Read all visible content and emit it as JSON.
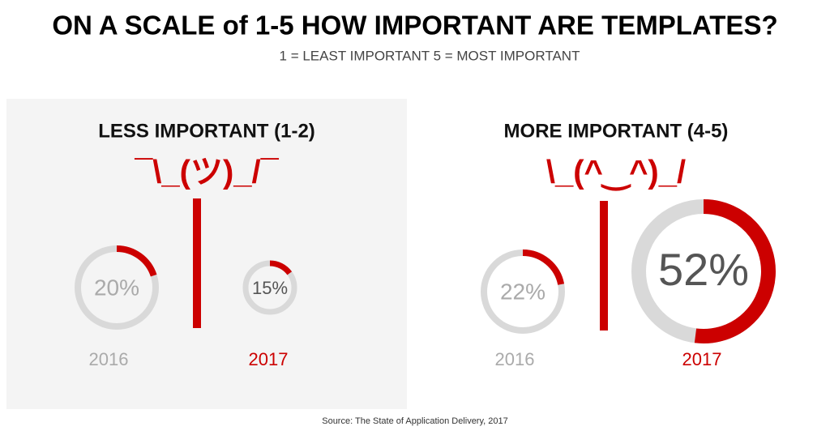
{
  "title": "ON A SCALE of 1-5 HOW IMPORTANT ARE TEMPLATES?",
  "subtitle": "1 = LEAST IMPORTANT  5 = MOST IMPORTANT",
  "source": "Source: The State of Application Delivery, 2017",
  "chart_data": [
    {
      "type": "donut",
      "title": "LESS IMPORTANT (1-2)",
      "emoticon": "¯\\_(ツ)_/¯",
      "categories": [
        "2016",
        "2017"
      ],
      "values": [
        20,
        15
      ],
      "value_labels": [
        "20%",
        "15%"
      ],
      "ylim": [
        0,
        100
      ],
      "color": "#cc0000",
      "track_color": "#d9d9d9"
    },
    {
      "type": "donut",
      "title": "MORE IMPORTANT (4-5)",
      "emoticon": "\\_(^‿^)_/",
      "categories": [
        "2016",
        "2017"
      ],
      "values": [
        22,
        52
      ],
      "value_labels": [
        "22%",
        "52%"
      ],
      "ylim": [
        0,
        100
      ],
      "color": "#cc0000",
      "track_color": "#d9d9d9"
    }
  ]
}
